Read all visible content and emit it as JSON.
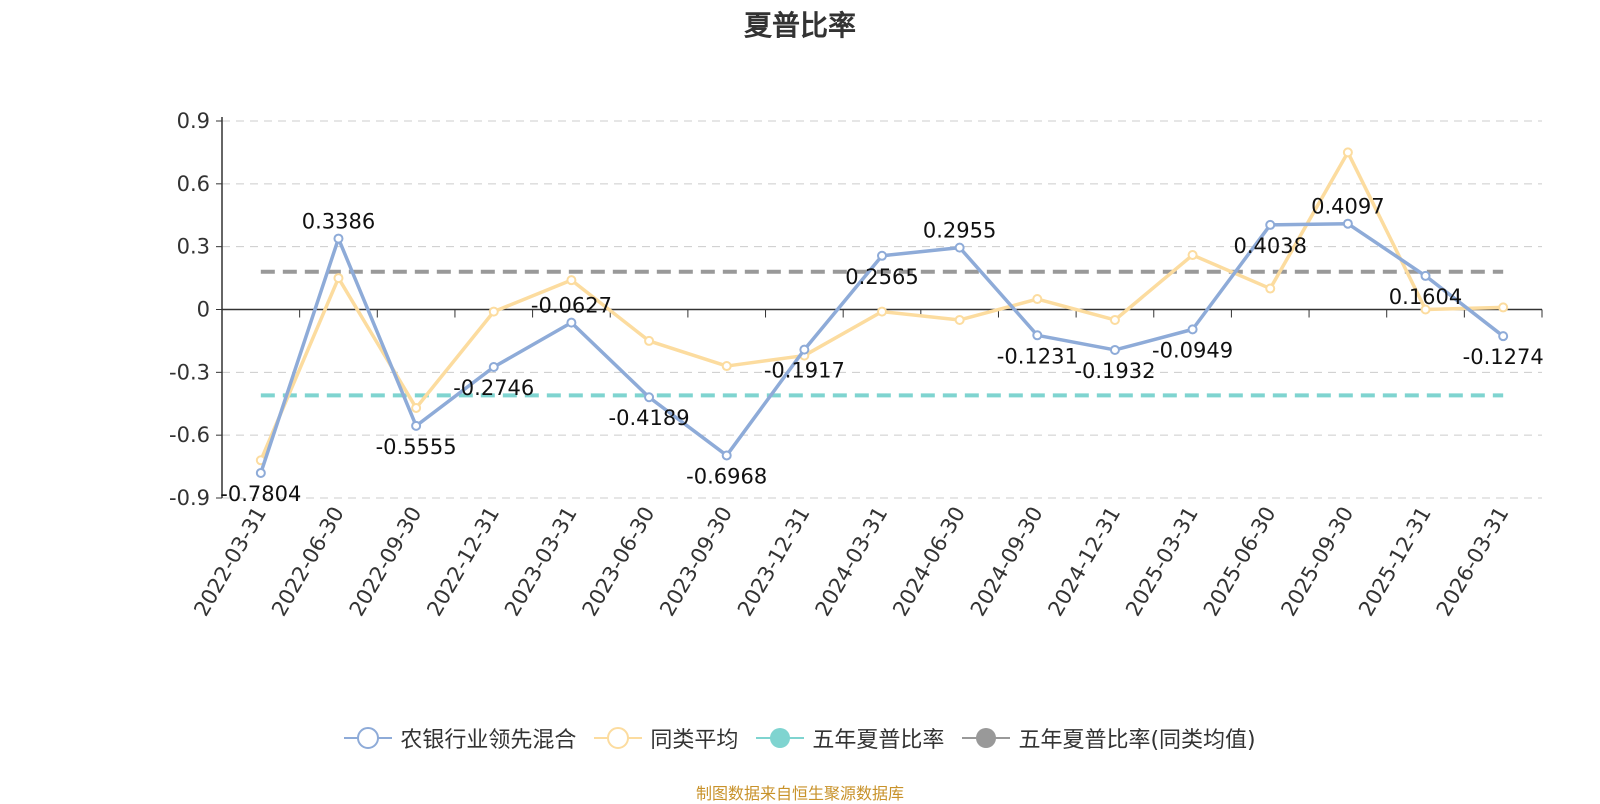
{
  "chart_data": {
    "type": "line",
    "title": "夏普比率",
    "categories": [
      "2022-03-31",
      "2022-06-30",
      "2022-09-30",
      "2022-12-31",
      "2023-03-31",
      "2023-06-30",
      "2023-09-30",
      "2023-12-31",
      "2024-03-31",
      "2024-06-30",
      "2024-09-30",
      "2024-12-31",
      "2025-03-31",
      "2025-06-30",
      "2025-09-30",
      "2025-12-31",
      "2026-03-31"
    ],
    "ylim": [
      -0.9,
      0.9
    ],
    "yticks": [
      "0.9",
      "0.6",
      "0.3",
      "0",
      "-0.3",
      "-0.6",
      "-0.9"
    ],
    "grid": true,
    "legend_position": "bottom",
    "series": [
      {
        "name": "农银行业领先混合",
        "color": "#8eabd8",
        "values": [
          -0.7804,
          0.3386,
          -0.5555,
          -0.2746,
          -0.0627,
          -0.4189,
          -0.6968,
          -0.1917,
          0.2565,
          0.2955,
          -0.1231,
          -0.1932,
          -0.0949,
          0.4038,
          0.4097,
          0.1604,
          -0.1274
        ],
        "labels": [
          "-0.7804",
          "0.3386",
          "-0.5555",
          "-0.2746",
          "-0.0627",
          "-0.4189",
          "-0.6968",
          "-0.1917",
          "0.2565",
          "0.2955",
          "-0.1231",
          "-0.1932",
          "-0.0949",
          "0.4038",
          "0.4097",
          "0.1604",
          "-0.1274"
        ]
      },
      {
        "name": "同类平均",
        "color": "#fcdc9f",
        "values": [
          -0.72,
          0.15,
          -0.47,
          -0.01,
          0.14,
          -0.15,
          -0.27,
          -0.22,
          -0.01,
          -0.05,
          0.05,
          -0.05,
          0.26,
          0.1,
          0.75,
          0.0,
          0.01
        ]
      }
    ],
    "reference_lines": [
      {
        "name": "五年夏普比率",
        "color": "#7fd4d0",
        "value": -0.41
      },
      {
        "name": "五年夏普比率(同类均值)",
        "color": "#999999",
        "value": 0.18
      }
    ]
  },
  "legend": [
    {
      "label": "农银行业领先混合",
      "color": "#8eabd8",
      "marker": "hollow-circle"
    },
    {
      "label": "同类平均",
      "color": "#fcdc9f",
      "marker": "hollow-circle"
    },
    {
      "label": "五年夏普比率",
      "color": "#7fd4d0",
      "marker": "filled-circle"
    },
    {
      "label": "五年夏普比率(同类均值)",
      "color": "#999999",
      "marker": "filled-circle"
    }
  ],
  "footer": "制图数据来自恒生聚源数据库"
}
